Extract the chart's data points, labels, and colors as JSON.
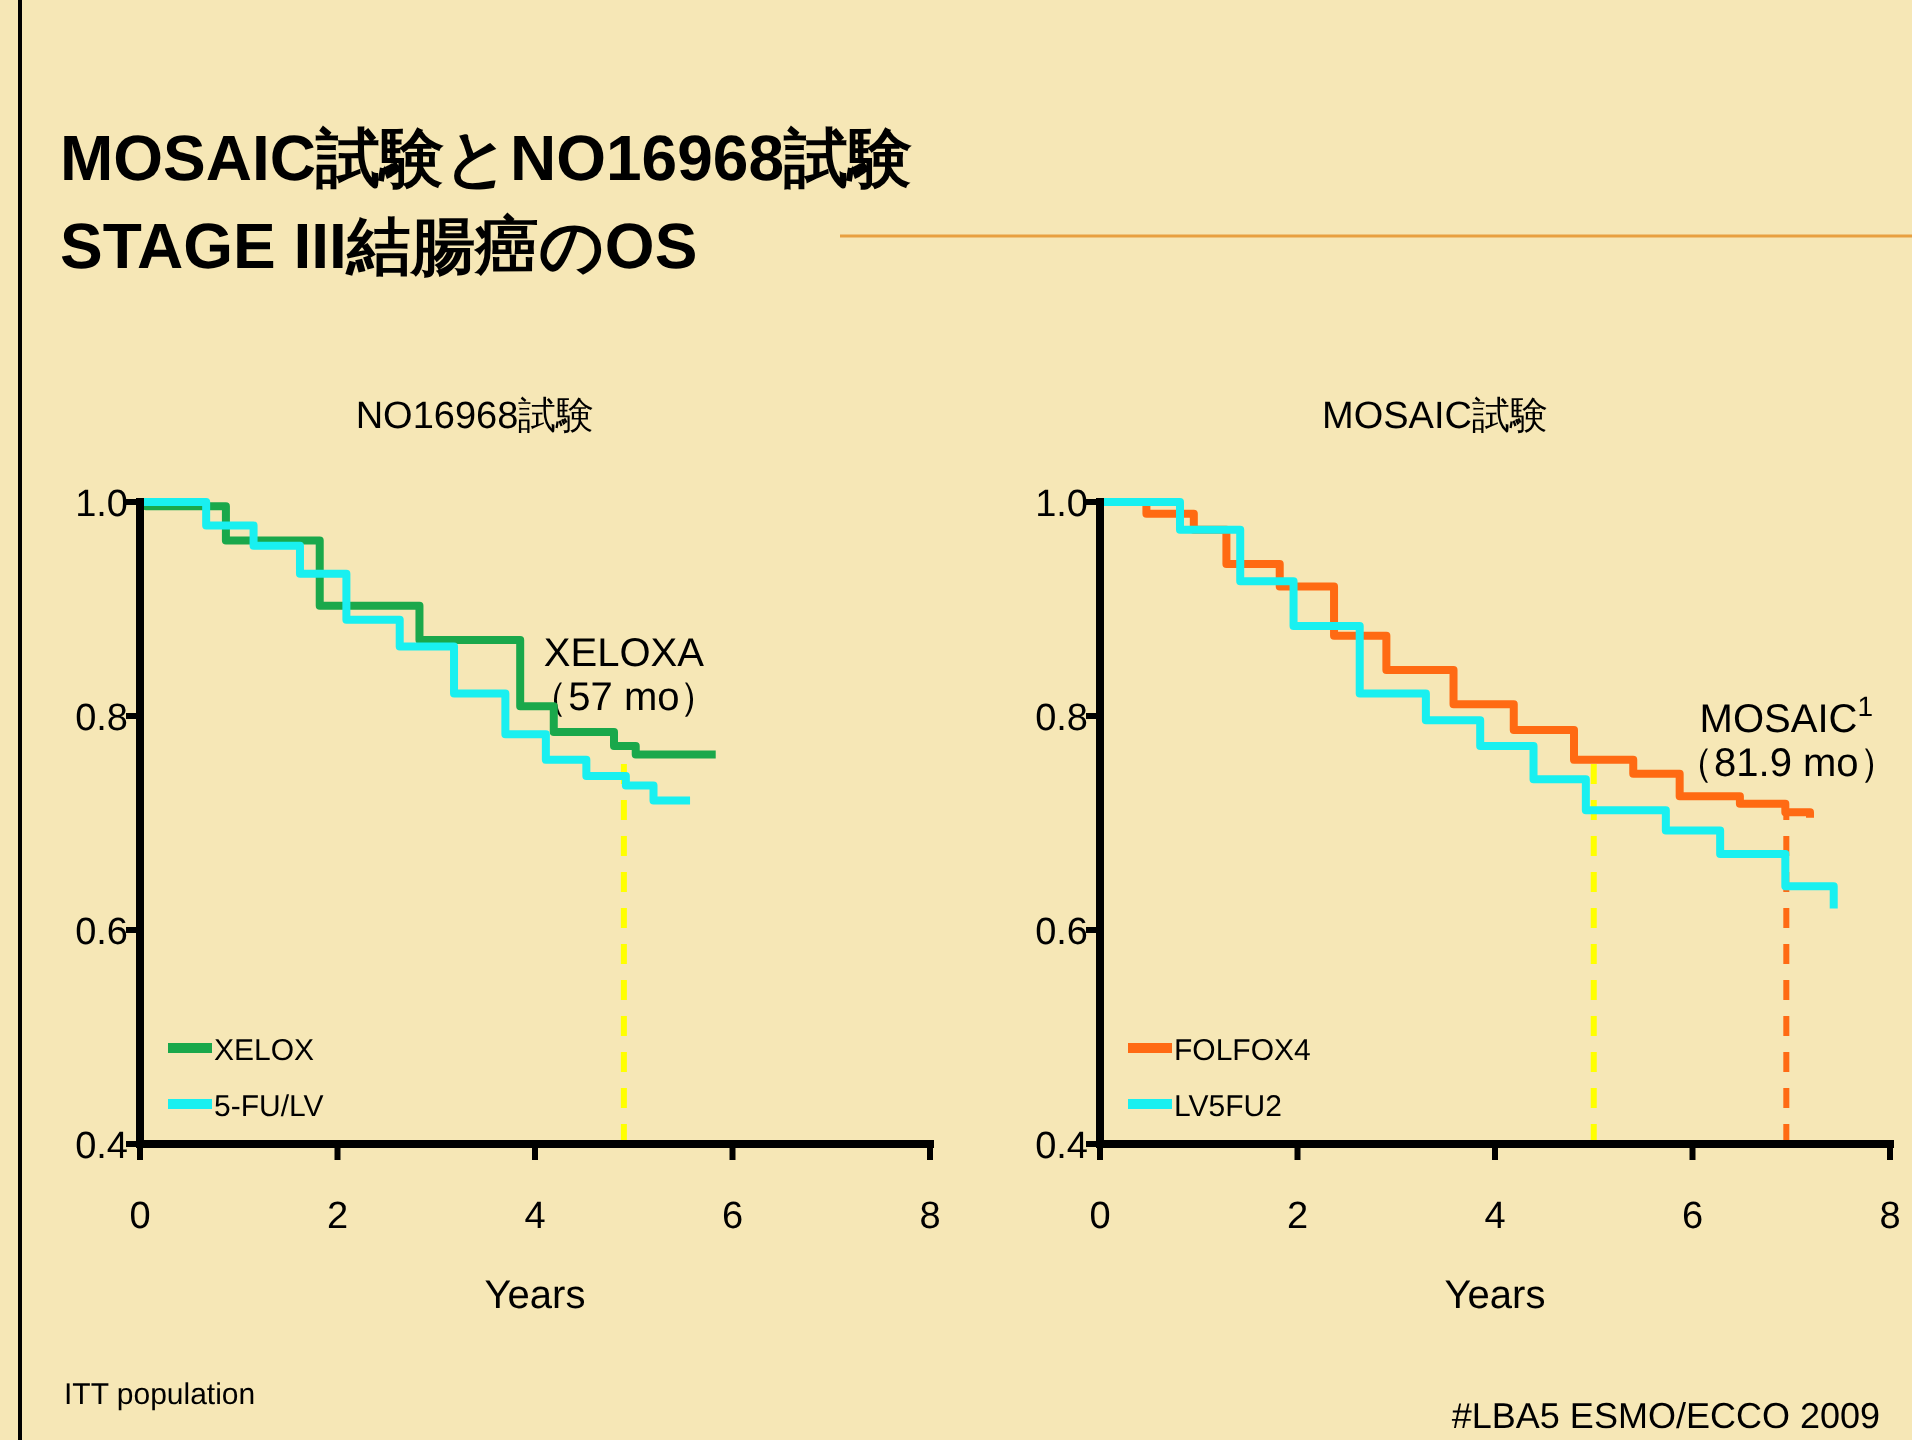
{
  "chart_data": [
    {
      "type": "step",
      "title": "MOSAIC試験とNO16968試験\nSTAGE III結腸癌のOS",
      "subtitle": "NO16968試験",
      "xlabel": "Years",
      "xlim": [
        0,
        8
      ],
      "xticks": [
        0,
        2,
        4,
        6,
        8
      ],
      "ylim": [
        0.4,
        1.0
      ],
      "yticks": [
        {
          "value": 0.4,
          "label": "0.4"
        },
        {
          "value": 0.6,
          "label": "0.6"
        },
        {
          "value": 0.8,
          "label": "0.8"
        },
        {
          "value": 1.0,
          "label": "1.0"
        }
      ],
      "grid": false,
      "legend": "bottom left",
      "line_style": "solid",
      "marker": "none",
      "series": [
        {
          "name": "XELOX",
          "color": "#1aa84b",
          "x": [
            0,
            0.06,
            0.87,
            1.82,
            2.83,
            3.85,
            4.19,
            4.8,
            5.02,
            5.83
          ],
          "values": [
            1.0,
            0.996,
            0.964,
            0.903,
            0.871,
            0.809,
            0.785,
            0.772,
            0.764,
            0.764
          ]
        },
        {
          "name": "5-FU/LV",
          "color": "#19f0f0",
          "x": [
            0,
            0.67,
            1.15,
            1.62,
            2.09,
            2.63,
            3.18,
            3.7,
            4.11,
            4.52,
            4.92,
            5.2,
            5.57
          ],
          "values": [
            1.0,
            0.978,
            0.959,
            0.933,
            0.89,
            0.865,
            0.821,
            0.783,
            0.759,
            0.744,
            0.735,
            0.721,
            0.721
          ]
        }
      ],
      "ref_lines": [
        {
          "axis": "x",
          "value": 4.9,
          "label": "XELOXA\n（57 mo）",
          "color": "#ffff00",
          "line_style": "dashed"
        }
      ],
      "annotations": [
        "ITT population"
      ]
    },
    {
      "type": "step",
      "title": "MOSAIC試験",
      "xlabel": "Years",
      "xlim": [
        0,
        8
      ],
      "xticks": [
        0,
        2,
        4,
        6,
        8
      ],
      "ylim": [
        0.4,
        1.0
      ],
      "yticks": [
        {
          "value": 0.4,
          "label": "0.4"
        },
        {
          "value": 0.6,
          "label": "0.6"
        },
        {
          "value": 0.8,
          "label": "0.8"
        },
        {
          "value": 1.0,
          "label": "1.0"
        }
      ],
      "grid": false,
      "legend": "bottom left",
      "line_style": "solid",
      "marker": "none",
      "series": [
        {
          "name": "FOLFOX4",
          "color": "#ff6a13",
          "x": [
            0,
            0.47,
            0.95,
            1.28,
            1.82,
            2.37,
            2.9,
            3.58,
            4.19,
            4.8,
            5.4,
            5.87,
            6.48,
            6.94,
            7.19
          ],
          "values": [
            1.0,
            0.989,
            0.974,
            0.942,
            0.921,
            0.875,
            0.843,
            0.811,
            0.787,
            0.759,
            0.746,
            0.725,
            0.718,
            0.71,
            0.705
          ]
        },
        {
          "name": "LV5FU2",
          "color": "#19f0f0",
          "x": [
            0,
            0.81,
            1.42,
            1.96,
            2.63,
            3.3,
            3.85,
            4.39,
            4.92,
            5.73,
            6.28,
            6.94,
            7.43,
            7.43
          ],
          "values": [
            1.0,
            0.974,
            0.926,
            0.884,
            0.821,
            0.796,
            0.772,
            0.741,
            0.712,
            0.693,
            0.671,
            0.641,
            0.628,
            0.62
          ]
        }
      ],
      "ref_lines": [
        {
          "axis": "x",
          "value": 5.0,
          "color": "#ffff00",
          "line_style": "dashed"
        },
        {
          "axis": "x",
          "value": 6.95,
          "label": "MOSAIC$^{1}$\n（81.9 mo）",
          "color": "#ff6a13",
          "line_style": "dashed"
        }
      ],
      "annotations": [
        "#LBA5 ESMO/ECCO 2009"
      ]
    }
  ]
}
